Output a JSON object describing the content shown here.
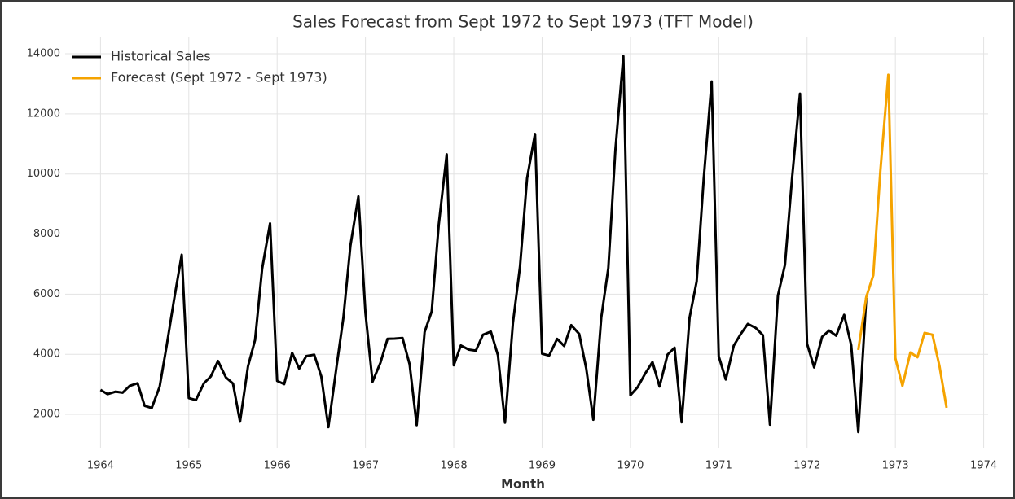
{
  "chart_data": {
    "type": "line",
    "title": "Sales Forecast from Sept 1972 to Sept 1973 (TFT Model)",
    "x_label": "Month",
    "xlim": [
      1963.6,
      1974.05
    ],
    "xticks": [
      1964,
      1965,
      1966,
      1967,
      1968,
      1969,
      1970,
      1971,
      1972,
      1973,
      1974
    ],
    "ylim": [
      890,
      14570
    ],
    "yticks": [
      2000,
      4000,
      6000,
      8000,
      10000,
      12000,
      14000
    ],
    "grid": true,
    "legend": "upper left",
    "series": [
      {
        "name": "Historical Sales",
        "color": "#000000",
        "x": [
          1964.0,
          1964.08,
          1964.17,
          1964.25,
          1964.33,
          1964.42,
          1964.5,
          1964.58,
          1964.67,
          1964.75,
          1964.83,
          1964.92,
          1965.0,
          1965.08,
          1965.17,
          1965.25,
          1965.33,
          1965.42,
          1965.5,
          1965.58,
          1965.67,
          1965.75,
          1965.83,
          1965.92,
          1966.0,
          1966.08,
          1966.17,
          1966.25,
          1966.33,
          1966.42,
          1966.5,
          1966.58,
          1966.67,
          1966.75,
          1966.83,
          1966.92,
          1967.0,
          1967.08,
          1967.17,
          1967.25,
          1967.33,
          1967.42,
          1967.5,
          1967.58,
          1967.67,
          1967.75,
          1967.83,
          1967.92,
          1968.0,
          1968.08,
          1968.17,
          1968.25,
          1968.33,
          1968.42,
          1968.5,
          1968.58,
          1968.67,
          1968.75,
          1968.83,
          1968.92,
          1969.0,
          1969.08,
          1969.17,
          1969.25,
          1969.33,
          1969.42,
          1969.5,
          1969.58,
          1969.67,
          1969.75,
          1969.83,
          1969.92,
          1970.0,
          1970.08,
          1970.17,
          1970.25,
          1970.33,
          1970.42,
          1970.5,
          1970.58,
          1970.67,
          1970.75,
          1970.83,
          1970.92,
          1971.0,
          1971.08,
          1971.17,
          1971.25,
          1971.33,
          1971.42,
          1971.5,
          1971.58,
          1971.67,
          1971.75,
          1971.83,
          1971.92,
          1972.0,
          1972.08,
          1972.17,
          1972.25,
          1972.33,
          1972.42,
          1972.5,
          1972.58,
          1972.67
        ],
        "values": [
          2815,
          2672,
          2755,
          2721,
          2946,
          3036,
          2282,
          2212,
          2922,
          4301,
          5764,
          7312,
          2541,
          2475,
          3031,
          3266,
          3776,
          3230,
          3028,
          1759,
          3595,
          4474,
          6838,
          8357,
          3113,
          3006,
          4047,
          3523,
          3937,
          3986,
          3260,
          1573,
          3528,
          5211,
          7614,
          9254,
          5375,
          3088,
          3718,
          4514,
          4520,
          4539,
          3663,
          1643,
          4739,
          5428,
          8314,
          10651,
          3633,
          4292,
          4154,
          4121,
          4647,
          4753,
          3965,
          1723,
          5048,
          6922,
          9858,
          11331,
          4016,
          3957,
          4510,
          4276,
          4968,
          4677,
          3523,
          1821,
          5222,
          6872,
          10803,
          13916,
          2639,
          2899,
          3370,
          3740,
          2927,
          3986,
          4217,
          1738,
          5221,
          6424,
          9842,
          13076,
          3934,
          3162,
          4286,
          4676,
          5010,
          4874,
          4633,
          1659,
          5951,
          6981,
          9851,
          12670,
          4348,
          3564,
          4577,
          4788,
          4618,
          5312,
          4298,
          1413,
          5877
        ]
      },
      {
        "name": "Forecast (Sept 1972 - Sept 1973)",
        "color": "#f5a300",
        "x": [
          1972.58,
          1972.67,
          1972.75,
          1972.83,
          1972.92,
          1973.0,
          1973.08,
          1973.17,
          1973.25,
          1973.33,
          1973.42,
          1973.5,
          1973.58
        ],
        "values": [
          4140,
          5900,
          6630,
          10100,
          13300,
          3870,
          2950,
          4060,
          3900,
          4710,
          4650,
          3600,
          2220
        ]
      }
    ]
  }
}
